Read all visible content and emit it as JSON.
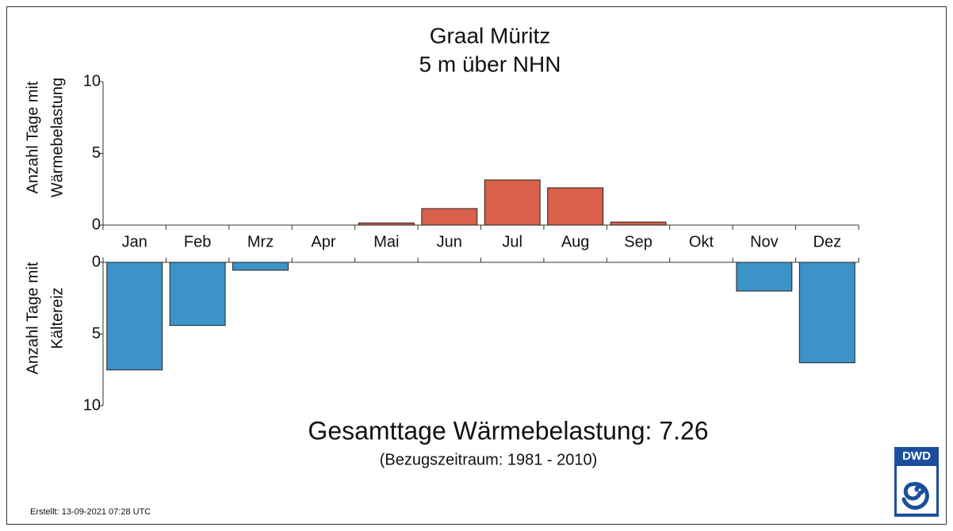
{
  "chart_data": [
    {
      "type": "bar",
      "title": "Graal Müritz",
      "subtitle": "5 m über NHN",
      "y_label": [
        "Anzahl Tage mit",
        "Wärmebelastung"
      ],
      "categories": [
        "Jan",
        "Feb",
        "Mrz",
        "Apr",
        "Mai",
        "Jun",
        "Jul",
        "Aug",
        "Sep",
        "Okt",
        "Nov",
        "Dez"
      ],
      "values": [
        0,
        0,
        0,
        0,
        0.15,
        1.15,
        3.15,
        2.6,
        0.21,
        0,
        0,
        0
      ],
      "color": "#d9604a",
      "ylim": [
        0,
        10
      ],
      "yticks": [
        0,
        5,
        10
      ],
      "y_inverted": false
    },
    {
      "type": "bar",
      "y_label": [
        "Anzahl Tage mit",
        "Kältereiz"
      ],
      "values": [
        7.5,
        4.4,
        0.55,
        0,
        0,
        0,
        0,
        0,
        0,
        0,
        2.0,
        7.0
      ],
      "color": "#3c93c8",
      "ylim": [
        0,
        10
      ],
      "yticks": [
        0,
        5,
        10
      ],
      "y_inverted": true
    }
  ],
  "summary": "Gesamttage Wärmebelastung: 7.26",
  "note": "(Bezugszeitraum: 1981 - 2010)",
  "created": "Erstellt: 13-09-2021 07:28 UTC",
  "logo": "DWD"
}
